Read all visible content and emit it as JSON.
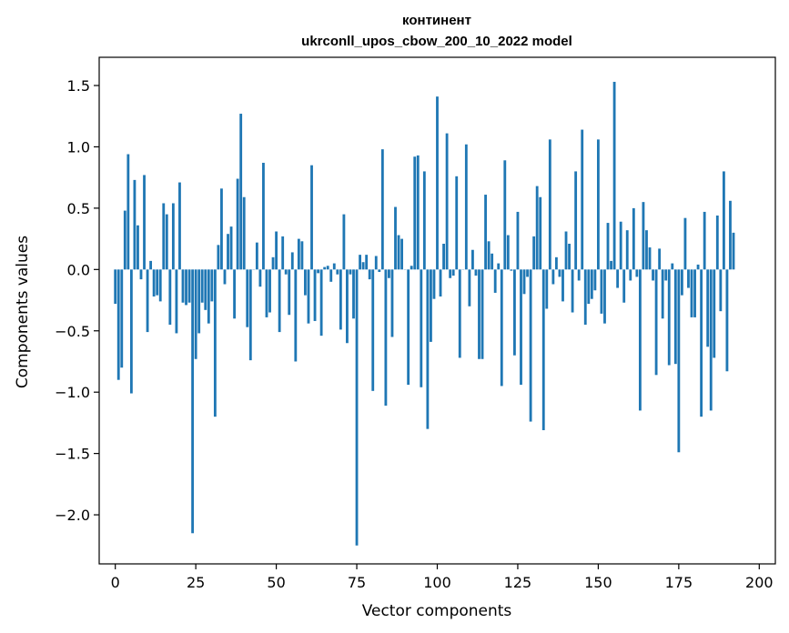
{
  "chart_data": {
    "type": "bar",
    "title": "континент",
    "subtitle": "ukrconll_upos_cbow_200_10_2022 model",
    "xlabel": "Vector components",
    "ylabel": "Components values",
    "xlim": [
      -5,
      205
    ],
    "ylim": [
      -2.4,
      1.73
    ],
    "xticks": [
      0,
      25,
      50,
      75,
      100,
      125,
      150,
      175,
      200
    ],
    "yticks": [
      -2.0,
      -1.5,
      -1.0,
      -0.5,
      0.0,
      0.5,
      1.0,
      1.5
    ],
    "ytick_labels": [
      "−2.0",
      "−1.5",
      "−1.0",
      "−0.5",
      "0.0",
      "0.5",
      "1.0",
      "1.5"
    ],
    "xtick_labels": [
      "0",
      "25",
      "50",
      "75",
      "100",
      "125",
      "150",
      "175",
      "200"
    ],
    "bar_color": "#1f77b4",
    "grid": false,
    "values": [
      -0.28,
      -0.9,
      -0.8,
      0.48,
      0.94,
      -1.01,
      0.73,
      0.36,
      -0.08,
      0.77,
      -0.51,
      0.07,
      -0.22,
      -0.21,
      -0.26,
      0.54,
      0.45,
      -0.45,
      0.54,
      -0.52,
      0.71,
      -0.27,
      -0.29,
      -0.27,
      -2.15,
      -0.73,
      -0.52,
      -0.27,
      -0.33,
      -0.44,
      -0.26,
      -1.2,
      0.2,
      0.66,
      -0.12,
      0.29,
      0.35,
      -0.4,
      0.74,
      1.27,
      0.59,
      -0.47,
      -0.74,
      0.0,
      0.22,
      -0.14,
      0.87,
      -0.39,
      -0.35,
      0.1,
      0.31,
      -0.51,
      0.27,
      -0.04,
      -0.37,
      0.14,
      -0.75,
      0.25,
      0.23,
      -0.21,
      -0.44,
      0.85,
      -0.42,
      -0.03,
      -0.54,
      0.02,
      0.03,
      -0.1,
      0.05,
      -0.04,
      -0.49,
      0.45,
      -0.6,
      -0.04,
      -0.4,
      -2.25,
      0.12,
      0.06,
      0.12,
      -0.08,
      -0.99,
      0.11,
      -0.02,
      0.98,
      -1.11,
      -0.07,
      -0.55,
      0.51,
      0.28,
      0.25,
      0.0,
      -0.94,
      0.03,
      0.92,
      0.93,
      -0.96,
      0.8,
      -1.3,
      -0.59,
      -0.24,
      1.41,
      -0.22,
      0.21,
      1.11,
      -0.07,
      -0.05,
      0.76,
      -0.72,
      0.0,
      1.02,
      -0.3,
      0.16,
      -0.05,
      -0.73,
      -0.73,
      0.61,
      0.23,
      0.13,
      -0.19,
      0.05,
      -0.95,
      0.89,
      0.28,
      -0.01,
      -0.7,
      0.47,
      -0.94,
      -0.2,
      -0.06,
      -1.24,
      0.27,
      0.68,
      0.59,
      -1.31,
      -0.32,
      1.06,
      -0.12,
      0.1,
      -0.06,
      -0.26,
      0.31,
      0.21,
      -0.35,
      0.8,
      -0.09,
      1.14,
      -0.45,
      -0.28,
      -0.24,
      -0.17,
      1.06,
      -0.36,
      -0.44,
      0.38,
      0.07,
      1.53,
      -0.15,
      0.39,
      -0.27,
      0.32,
      -0.09,
      0.5,
      -0.06,
      -1.15,
      0.55,
      0.32,
      0.18,
      -0.09,
      -0.86,
      0.17,
      -0.4,
      -0.09,
      -0.78,
      0.05,
      -0.77,
      -1.49,
      -0.21,
      0.42,
      -0.15,
      -0.39,
      -0.39,
      0.04,
      -1.2,
      0.47,
      -0.63,
      -1.15,
      -0.72,
      0.44,
      -0.34,
      0.8,
      -0.83,
      0.56,
      0.3
    ]
  }
}
